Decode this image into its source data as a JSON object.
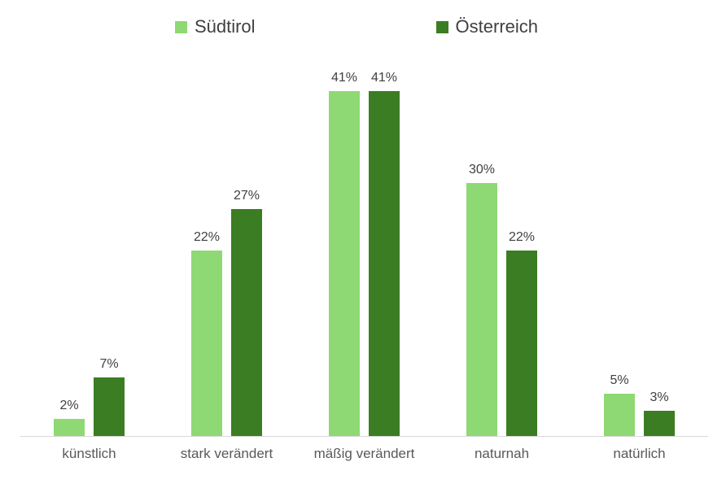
{
  "chart_data": {
    "type": "bar",
    "title": "",
    "categories": [
      "künstlich",
      "stark verändert",
      "mäßig verändert",
      "naturnah",
      "natürlich"
    ],
    "series": [
      {
        "name": "Südtirol",
        "color": "#8ed973",
        "values": [
          2,
          22,
          41,
          30,
          5
        ]
      },
      {
        "name": "Österreich",
        "color": "#3b7d23",
        "values": [
          7,
          27,
          41,
          22,
          3
        ]
      }
    ],
    "value_suffix": "%",
    "data_labels": true,
    "xlabel": "",
    "ylabel": "",
    "ylim": [
      0,
      45
    ],
    "grid": false,
    "y_axis_visible": false,
    "legend_position": "top",
    "axis_line_color": "#d9d9d9",
    "data_label_color": "#404040",
    "category_label_color": "#595959",
    "legend_text_color": "#404040",
    "background_color": "#ffffff"
  }
}
